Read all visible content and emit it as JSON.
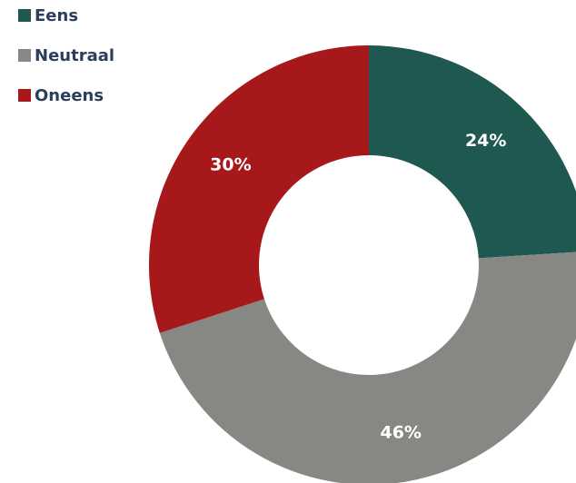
{
  "chart_data": {
    "type": "donut",
    "title": "",
    "legend_position": "top-left",
    "categories": [
      "Eens",
      "Neutraal",
      "Oneens"
    ],
    "values": [
      24,
      46,
      30
    ],
    "value_labels": [
      "24%",
      "46%",
      "30%"
    ],
    "colors": [
      "#1f5751",
      "#878783",
      "#a61819"
    ]
  }
}
